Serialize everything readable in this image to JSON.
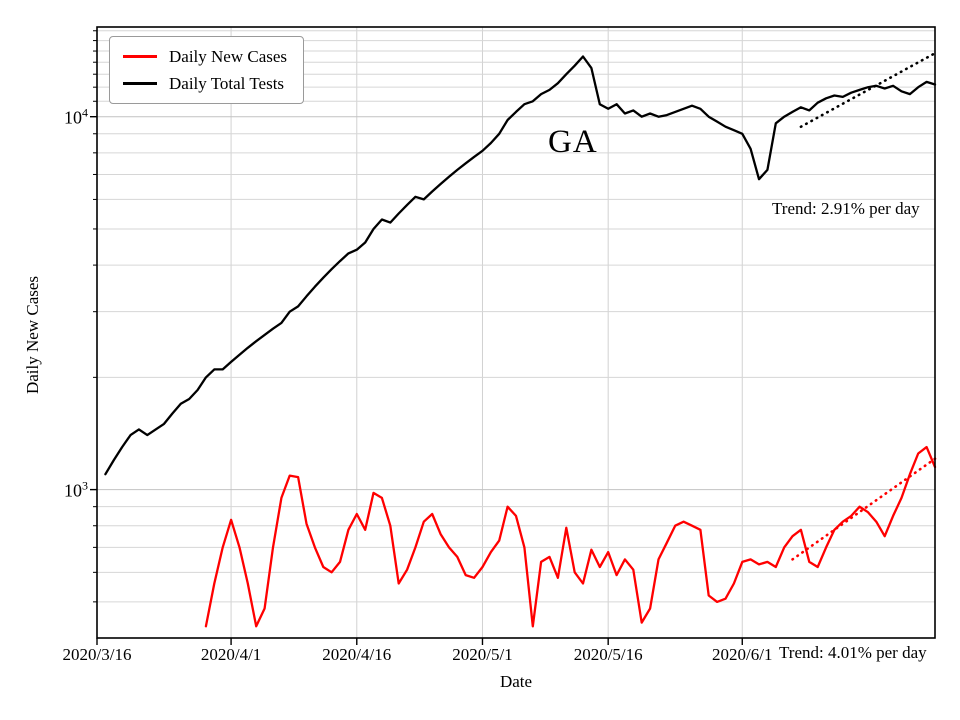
{
  "chart_data": {
    "type": "line",
    "title": "",
    "grid": true,
    "legend_position": "upper-left",
    "annotations": {
      "state_label": "GA"
    },
    "x_axis": {
      "label": "Date",
      "origin_date": "2020/3/16",
      "range_days": [
        0,
        100
      ],
      "ticks": [
        {
          "day": 0,
          "label": "2020/3/16"
        },
        {
          "day": 16,
          "label": "2020/4/1"
        },
        {
          "day": 31,
          "label": "2020/4/16"
        },
        {
          "day": 46,
          "label": "2020/5/1"
        },
        {
          "day": 61,
          "label": "2020/5/16"
        },
        {
          "day": 77,
          "label": "2020/6/1"
        }
      ]
    },
    "y_axis": {
      "label": "Daily New Cases",
      "scale": "log",
      "lim": [
        400,
        17400
      ],
      "ticks": [
        {
          "value": 10000,
          "base": "10",
          "exp": "4"
        },
        {
          "value": 1000,
          "base": "10",
          "exp": "3"
        }
      ],
      "major_gridlines": [
        1000,
        10000
      ],
      "minor_gridlines": [
        500,
        600,
        700,
        800,
        900,
        2000,
        3000,
        4000,
        5000,
        6000,
        7000,
        8000,
        9000,
        11000,
        12000,
        13000,
        14000,
        15000,
        16000,
        17000
      ]
    },
    "series": [
      {
        "name": "Daily New Cases",
        "color": "#ff0000",
        "start_day": 13,
        "values": [
          430,
          560,
          700,
          830,
          700,
          560,
          430,
          480,
          700,
          950,
          1090,
          1080,
          810,
          700,
          620,
          600,
          640,
          780,
          860,
          780,
          980,
          950,
          800,
          560,
          610,
          700,
          820,
          860,
          760,
          700,
          660,
          590,
          580,
          620,
          680,
          730,
          900,
          850,
          700,
          430,
          640,
          660,
          580,
          790,
          600,
          560,
          690,
          620,
          680,
          590,
          650,
          610,
          440,
          480,
          650,
          720,
          800,
          820,
          800,
          780,
          520,
          500,
          510,
          560,
          640,
          650,
          630,
          640,
          620,
          700,
          750,
          780,
          640,
          620,
          700,
          780,
          820,
          850,
          900,
          870,
          820,
          750,
          850,
          950,
          1100,
          1250,
          1300,
          1150
        ]
      },
      {
        "name": "Daily Total Tests",
        "color": "#000000",
        "start_day": 1,
        "values": [
          1100,
          1200,
          1300,
          1400,
          1450,
          1400,
          1450,
          1500,
          1600,
          1700,
          1750,
          1850,
          2000,
          2100,
          2100,
          2200,
          2300,
          2400,
          2500,
          2600,
          2700,
          2800,
          3000,
          3100,
          3300,
          3500,
          3700,
          3900,
          4100,
          4300,
          4400,
          4600,
          5000,
          5300,
          5200,
          5500,
          5800,
          6100,
          6000,
          6300,
          6600,
          6900,
          7200,
          7500,
          7800,
          8100,
          8500,
          9000,
          9800,
          10300,
          10800,
          11000,
          11500,
          11800,
          12300,
          13000,
          13700,
          14500,
          13500,
          10800,
          10500,
          10800,
          10200,
          10400,
          10000,
          10200,
          10000,
          10100,
          10300,
          10500,
          10700,
          10500,
          10000,
          9700,
          9400,
          9200,
          9000,
          8200,
          6800,
          7200,
          9600,
          10000,
          10300,
          10600,
          10400,
          10900,
          11200,
          11400,
          11300,
          11600,
          11800,
          12000,
          12100,
          11900,
          12100,
          11700,
          11500,
          12000,
          12400,
          12200
        ]
      }
    ],
    "trend_lines": [
      {
        "label": "Trend: 2.91% per day",
        "color": "#000000",
        "start_day": 84,
        "start_value": 9400,
        "end_day": 100,
        "end_value": 14800
      },
      {
        "label": "Trend: 4.01% per day",
        "color": "#ff0000",
        "start_day": 83,
        "start_value": 650,
        "end_day": 100,
        "end_value": 1210
      }
    ]
  }
}
